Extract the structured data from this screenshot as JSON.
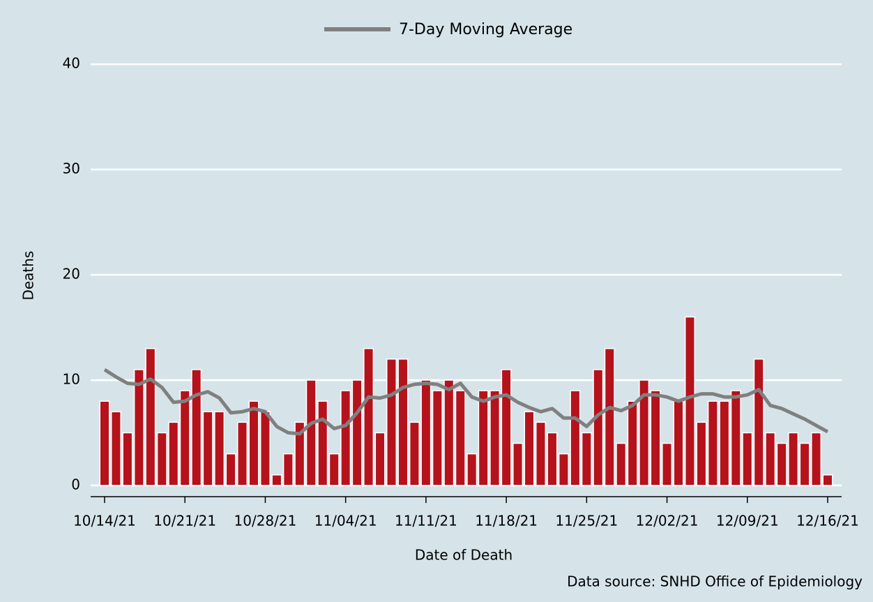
{
  "chart_data": {
    "type": "bar",
    "x_label": "Date of Death",
    "y_label": "Deaths",
    "source": "Data source: SNHD Office of Epidemiology",
    "categories": [
      "10/14/21",
      null,
      null,
      null,
      null,
      null,
      null,
      "10/21/21",
      null,
      null,
      null,
      null,
      null,
      null,
      "10/28/21",
      null,
      null,
      null,
      null,
      null,
      null,
      "11/04/21",
      null,
      null,
      null,
      null,
      null,
      null,
      "11/11/21",
      null,
      null,
      null,
      null,
      null,
      null,
      "11/18/21",
      null,
      null,
      null,
      null,
      null,
      null,
      "11/25/21",
      null,
      null,
      null,
      null,
      null,
      null,
      "12/02/21",
      null,
      null,
      null,
      null,
      null,
      null,
      "12/09/21",
      null,
      null,
      null,
      null,
      null,
      null,
      "12/16/21"
    ],
    "series": [
      {
        "type": "bar",
        "color": "#b5121b",
        "values": [
          8,
          7,
          5,
          11,
          13,
          5,
          6,
          9,
          11,
          7,
          7,
          3,
          6,
          8,
          7,
          1,
          3,
          6,
          10,
          8,
          3,
          9,
          10,
          13,
          5,
          12,
          12,
          6,
          10,
          9,
          10,
          9,
          3,
          9,
          9,
          11,
          4,
          7,
          6,
          5,
          3,
          9,
          5,
          11,
          13,
          4,
          8,
          10,
          9,
          4,
          8,
          16,
          6,
          8,
          8,
          9,
          5,
          12,
          5,
          4,
          5,
          4,
          5,
          1
        ]
      },
      {
        "type": "line",
        "name": "7-Day Moving Average",
        "color": "#808080",
        "values": [
          11.0,
          10.3,
          9.7,
          9.6,
          10.1,
          9.3,
          7.9,
          8.0,
          8.6,
          8.9,
          8.3,
          6.9,
          7.0,
          7.3,
          7.0,
          5.6,
          5.0,
          4.9,
          5.9,
          6.3,
          5.4,
          5.7,
          6.9,
          8.4,
          8.3,
          8.6,
          9.3,
          9.6,
          9.7,
          9.6,
          9.1,
          9.7,
          8.4,
          8.0,
          8.4,
          8.6,
          7.9,
          7.4,
          7.0,
          7.3,
          6.4,
          6.4,
          5.6,
          6.7,
          7.4,
          7.1,
          7.6,
          8.6,
          8.6,
          8.4,
          8.0,
          8.4,
          8.7,
          8.7,
          8.4,
          8.4,
          8.6,
          9.1,
          7.6,
          7.3,
          6.8,
          6.3,
          5.7,
          5.1
        ]
      }
    ],
    "ylim": [
      -1,
      41
    ],
    "yticks": [
      0,
      10,
      20,
      30,
      40
    ],
    "grid": true
  }
}
